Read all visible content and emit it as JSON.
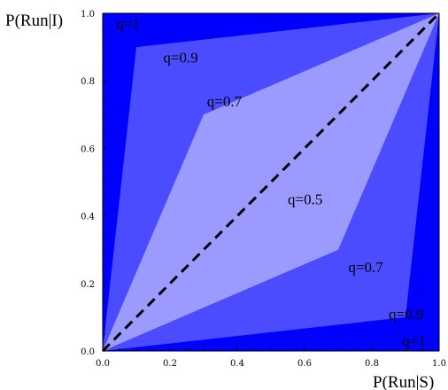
{
  "chart_data": {
    "type": "area",
    "xlabel": "P(Run|S)",
    "ylabel": "P(Run|I)",
    "xlim": [
      0,
      1
    ],
    "ylim": [
      0,
      1
    ],
    "x_ticks": [
      "0.0",
      "0.2",
      "0.4",
      "0.6",
      "0.8",
      "1.0"
    ],
    "y_ticks": [
      "0.0",
      "0.2",
      "0.4",
      "0.6",
      "0.8",
      "1.0"
    ],
    "grid": false,
    "colors": {
      "q1": "#0000ff",
      "q09": "#4b4bff",
      "q07": "#7575ff",
      "q05": "#9a9aff",
      "diagonal": "#000000"
    },
    "regions": [
      {
        "name": "q=1",
        "fill_key": "q1",
        "points": [
          [
            0,
            0
          ],
          [
            1,
            0
          ],
          [
            1,
            1
          ],
          [
            0,
            1
          ]
        ]
      },
      {
        "name": "q=0.9",
        "fill_key": "q09",
        "points": [
          [
            0,
            0
          ],
          [
            0.1,
            0.9
          ],
          [
            1,
            1
          ],
          [
            0.9,
            0.1
          ]
        ]
      },
      {
        "name": "q=0.7",
        "fill_key": "q07",
        "points": [
          [
            0,
            0
          ],
          [
            0.3,
            0.7
          ],
          [
            1,
            1
          ],
          [
            0.7,
            0.3
          ]
        ]
      },
      {
        "name": "q=0.5",
        "fill_key": "q05",
        "points": [
          [
            0,
            0
          ],
          [
            0.3,
            0.7
          ],
          [
            1,
            1
          ],
          [
            0.7,
            0.3
          ]
        ]
      }
    ],
    "diagonal": {
      "style": "dashed",
      "points": [
        [
          0,
          0
        ],
        [
          1,
          1
        ]
      ]
    },
    "annotations": [
      {
        "text": "q=1",
        "x": 0.04,
        "y": 0.97
      },
      {
        "text": "q=0.9",
        "x": 0.18,
        "y": 0.87
      },
      {
        "text": "q=0.7",
        "x": 0.31,
        "y": 0.74
      },
      {
        "text": "q=0.5",
        "x": 0.55,
        "y": 0.45
      },
      {
        "text": "q=0.7",
        "x": 0.73,
        "y": 0.25
      },
      {
        "text": "q=0.9",
        "x": 0.85,
        "y": 0.11
      },
      {
        "text": "q=1",
        "x": 0.89,
        "y": 0.03
      }
    ]
  }
}
